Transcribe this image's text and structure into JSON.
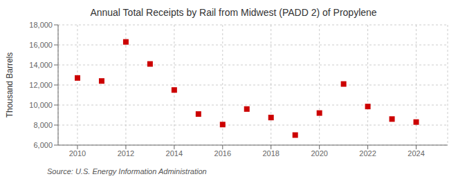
{
  "chart_data": {
    "type": "scatter",
    "title": "Annual Total Receipts by Rail from Midwest (PADD 2) of Propylene",
    "ylabel": "Thousand Barrels",
    "annotations": [
      "Source: U.S. Energy Information Administration"
    ],
    "x": [
      2010,
      2011,
      2012,
      2013,
      2014,
      2015,
      2016,
      2017,
      2018,
      2019,
      2020,
      2021,
      2022,
      2023,
      2024
    ],
    "values": [
      12700,
      12400,
      16300,
      14100,
      11500,
      9100,
      8050,
      9600,
      8750,
      7000,
      9200,
      12100,
      9850,
      8600,
      8300
    ],
    "color": "#cc0000",
    "marker": "square",
    "xlim": [
      2009.2,
      2025.3
    ],
    "xticks": [
      2010,
      2012,
      2014,
      2016,
      2018,
      2020,
      2022,
      2024
    ],
    "ylim": [
      6000,
      18000
    ],
    "yticks": [
      {
        "value": 6000,
        "label": "6,000"
      },
      {
        "value": 8000,
        "label": "8,000"
      },
      {
        "value": 10000,
        "label": "10,000"
      },
      {
        "value": 12000,
        "label": "12,000"
      },
      {
        "value": 14000,
        "label": "14,000"
      },
      {
        "value": 16000,
        "label": "16,000"
      },
      {
        "value": 18000,
        "label": "18,000"
      }
    ],
    "grid": true
  }
}
